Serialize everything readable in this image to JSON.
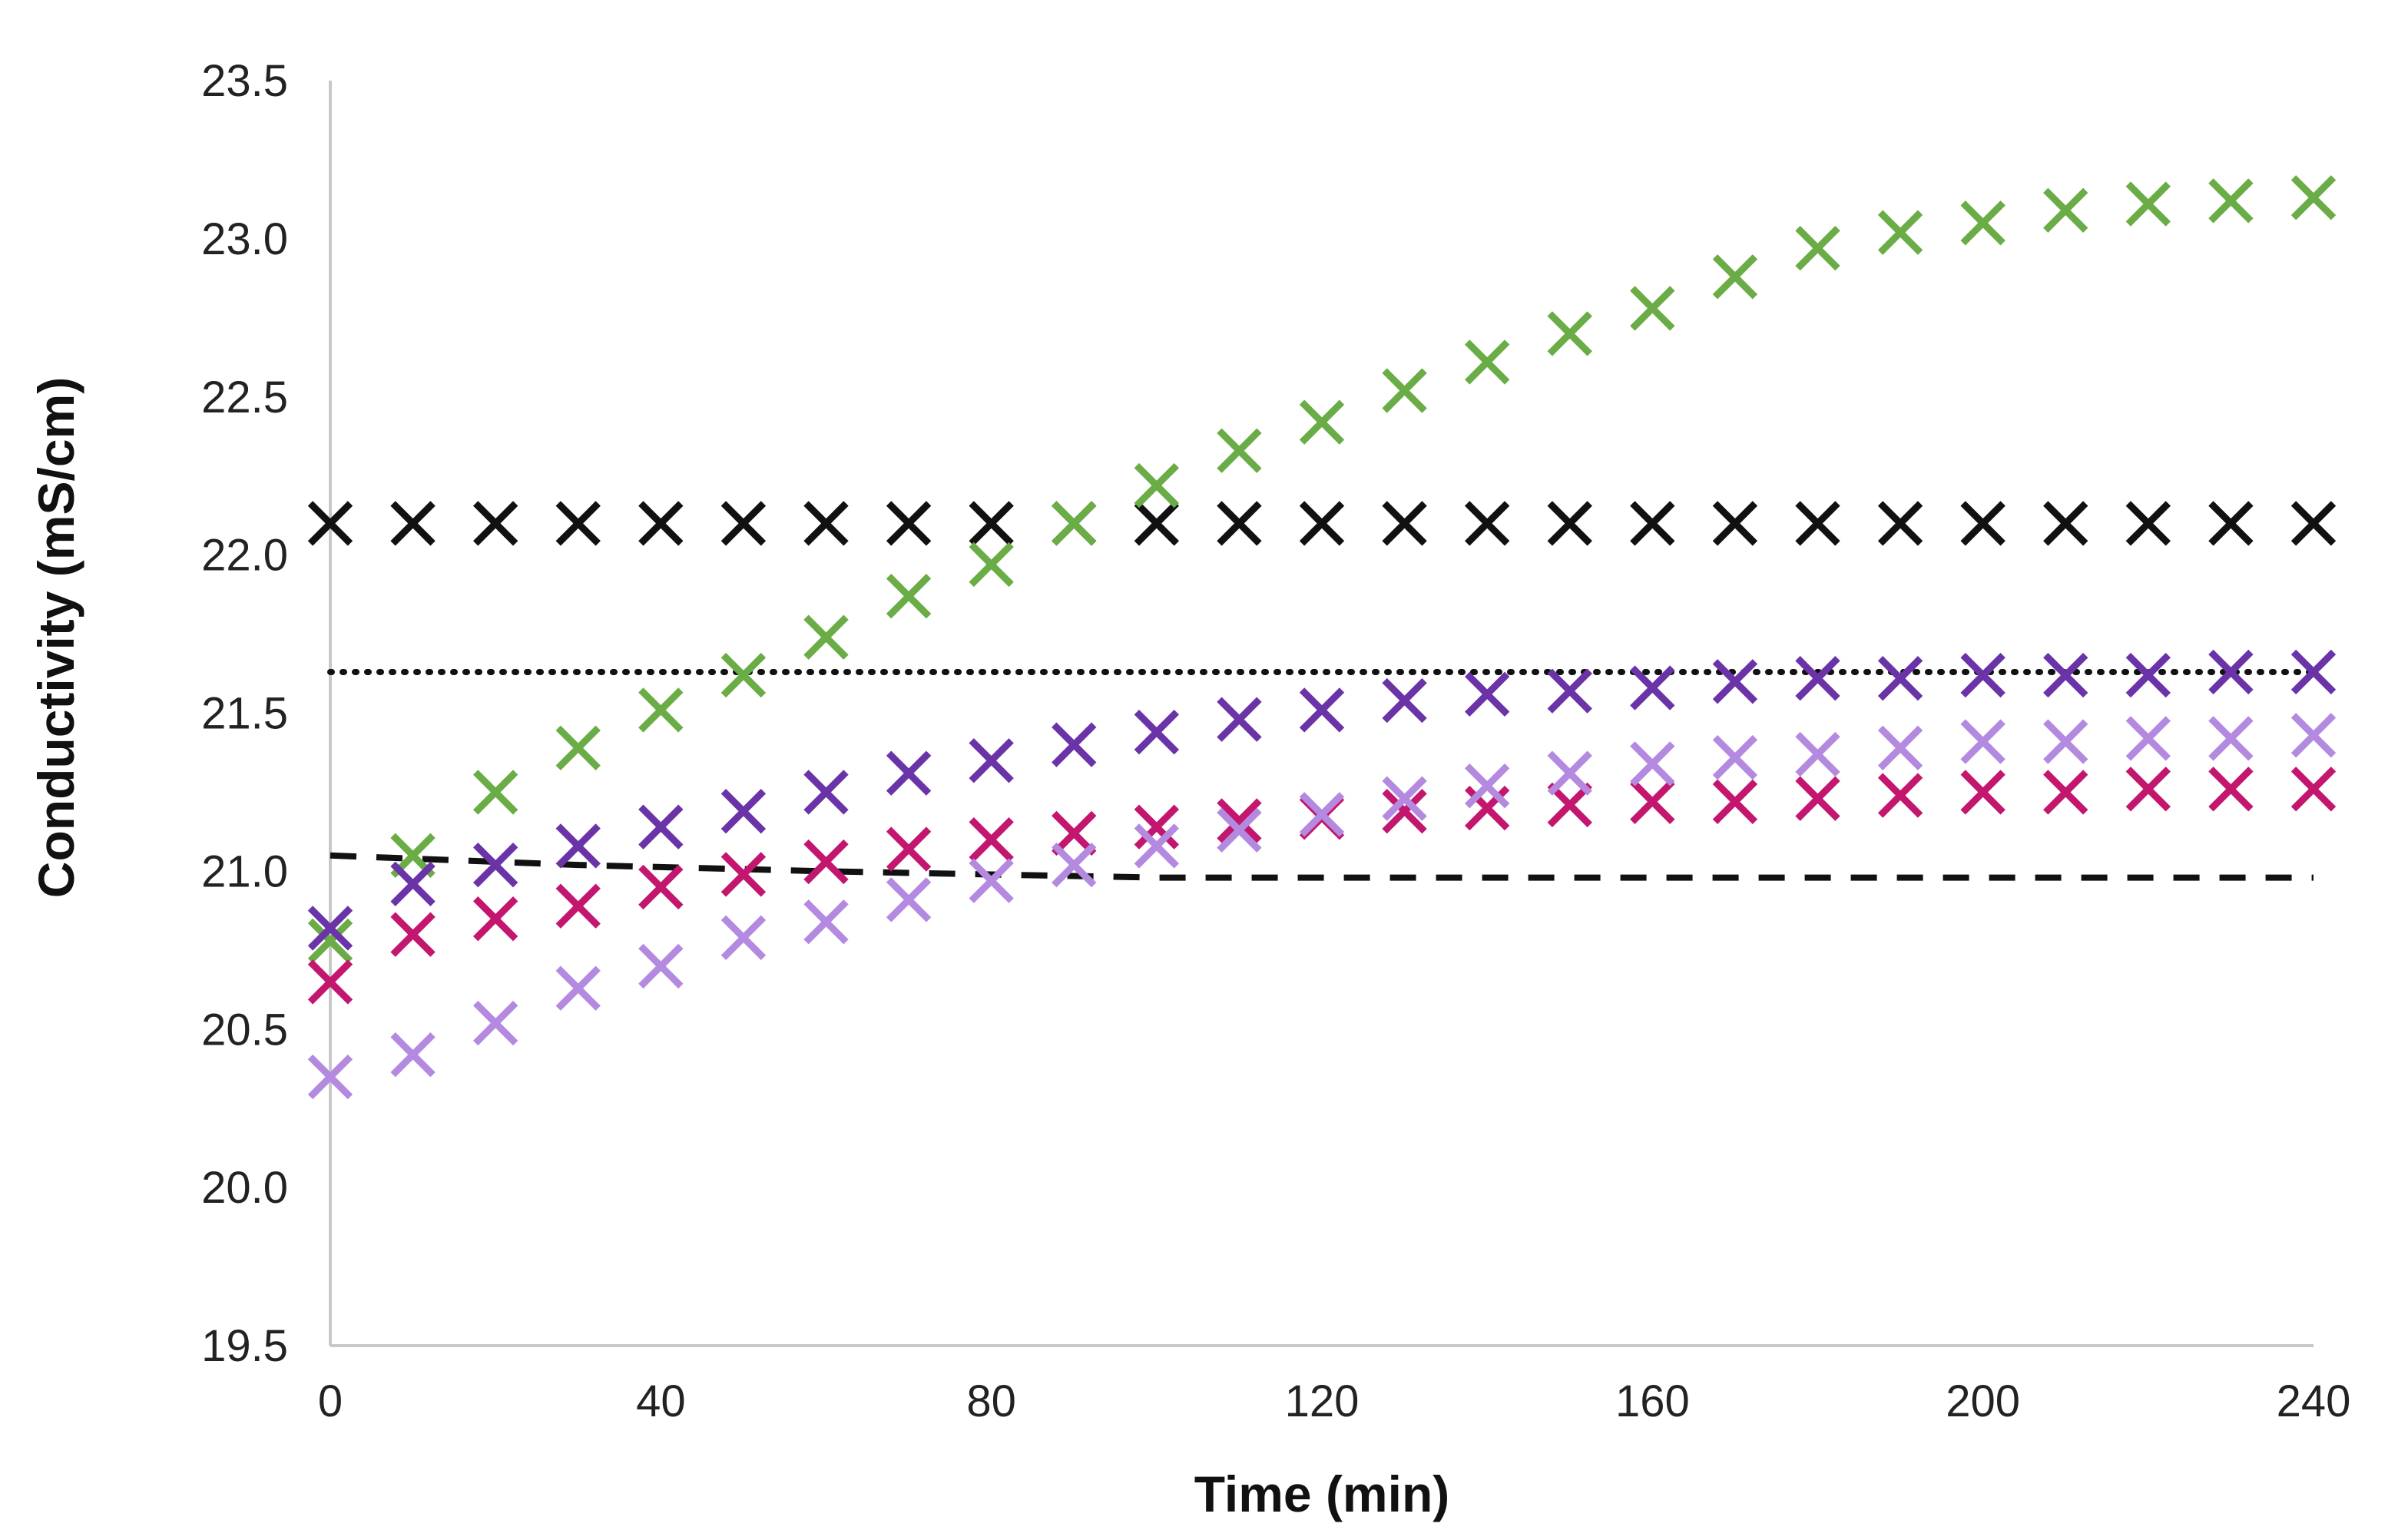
{
  "chart_data": {
    "type": "scatter",
    "title": "",
    "xlabel": "Time (min)",
    "ylabel": "Conductivity (mS/cm)",
    "xlim": [
      0,
      240
    ],
    "ylim": [
      19.5,
      23.5
    ],
    "xticks": [
      0,
      40,
      80,
      120,
      160,
      200,
      240
    ],
    "yticks": [
      19.5,
      20.0,
      20.5,
      21.0,
      21.5,
      22.0,
      22.5,
      23.0,
      23.5
    ],
    "xtick_labels": [
      "0",
      "40",
      "80",
      "120",
      "160",
      "200",
      "240"
    ],
    "ytick_labels": [
      "19.5",
      "20.0",
      "20.5",
      "21.0",
      "21.5",
      "22.0",
      "22.5",
      "23.0",
      "23.5"
    ],
    "grid": false,
    "legend": "none",
    "x": [
      0,
      10,
      20,
      30,
      40,
      50,
      60,
      70,
      80,
      90,
      100,
      110,
      120,
      130,
      140,
      150,
      160,
      170,
      180,
      190,
      200,
      210,
      220,
      230,
      240
    ],
    "series": [
      {
        "name": "black",
        "marker": "x",
        "color": "#111111",
        "values": [
          22.1,
          22.1,
          22.1,
          22.1,
          22.1,
          22.1,
          22.1,
          22.1,
          22.1,
          22.1,
          22.1,
          22.1,
          22.1,
          22.1,
          22.1,
          22.1,
          22.1,
          22.1,
          22.1,
          22.1,
          22.1,
          22.1,
          22.1,
          22.1,
          22.1
        ]
      },
      {
        "name": "green",
        "marker": "x",
        "color": "#6aac46",
        "values": [
          20.78,
          21.05,
          21.25,
          21.39,
          21.51,
          21.62,
          21.74,
          21.87,
          21.97,
          22.1,
          22.22,
          22.33,
          22.42,
          22.52,
          22.61,
          22.7,
          22.78,
          22.88,
          22.97,
          23.02,
          23.05,
          23.09,
          23.11,
          23.12,
          23.13
        ]
      },
      {
        "name": "purple",
        "marker": "x",
        "color": "#6b33a8",
        "values": [
          20.82,
          20.96,
          21.02,
          21.08,
          21.14,
          21.19,
          21.25,
          21.31,
          21.35,
          21.4,
          21.44,
          21.48,
          21.51,
          21.54,
          21.56,
          21.57,
          21.58,
          21.6,
          21.61,
          21.61,
          21.62,
          21.62,
          21.62,
          21.63,
          21.63
        ]
      },
      {
        "name": "magenta",
        "marker": "x",
        "color": "#c3166e",
        "values": [
          20.65,
          20.8,
          20.85,
          20.89,
          20.95,
          20.99,
          21.03,
          21.07,
          21.1,
          21.12,
          21.14,
          21.16,
          21.17,
          21.19,
          21.2,
          21.21,
          21.22,
          21.22,
          21.23,
          21.24,
          21.25,
          21.25,
          21.26,
          21.26,
          21.26
        ]
      },
      {
        "name": "lavender",
        "marker": "x",
        "color": "#b48ae0",
        "values": [
          20.35,
          20.42,
          20.52,
          20.63,
          20.7,
          20.79,
          20.84,
          20.91,
          20.97,
          21.02,
          21.08,
          21.13,
          21.18,
          21.23,
          21.27,
          21.31,
          21.34,
          21.36,
          21.37,
          21.39,
          21.41,
          21.41,
          21.42,
          21.42,
          21.43
        ]
      }
    ],
    "lines": [
      {
        "name": "dotted-reference",
        "style": "dotted",
        "color": "#111111",
        "x": [
          0,
          240
        ],
        "values": [
          21.63,
          21.63
        ]
      },
      {
        "name": "dashed-reference",
        "style": "dashed",
        "color": "#111111",
        "x": [
          0,
          30,
          60,
          80,
          100,
          120,
          160,
          200,
          240
        ],
        "values": [
          21.05,
          21.02,
          21.0,
          20.99,
          20.98,
          20.98,
          20.98,
          20.98,
          20.98
        ]
      }
    ]
  }
}
